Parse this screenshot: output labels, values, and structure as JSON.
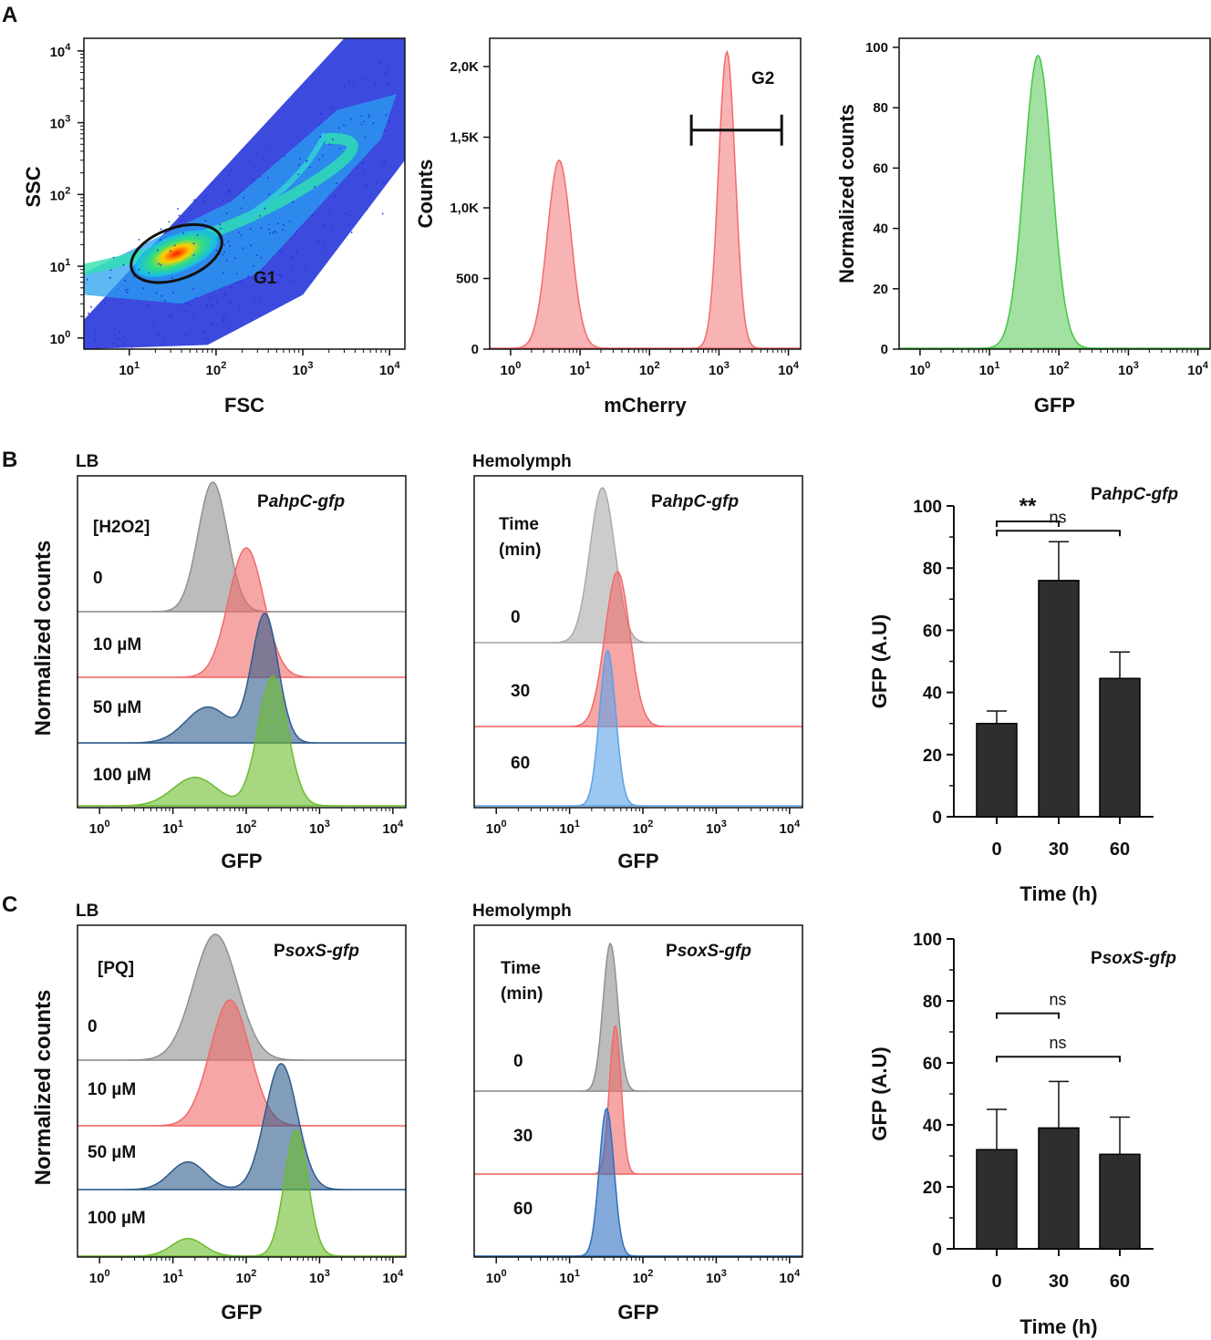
{
  "figure": {
    "panel_labels": [
      "A",
      "B",
      "C"
    ],
    "tick_exponents": [
      "0",
      "1",
      "2",
      "3",
      "4"
    ],
    "tick_base": "10",
    "colors": {
      "grey": "#8f8f8f",
      "red": "#f26a6a",
      "blue": "#2f5b8c",
      "lightblue": "#5aa2e8",
      "green": "#6cbc2d",
      "gfp_green": "#46c446",
      "bar": "#2e2e2e",
      "axis": "#111111"
    }
  },
  "chart_data": [
    {
      "id": "A1",
      "type": "scatter",
      "description_gate": "G1",
      "xlabel": "FSC",
      "ylabel": "SSC",
      "xscale": "log",
      "yscale": "log",
      "xlim": [
        3,
        15000
      ],
      "ylim": [
        0.7,
        15000
      ],
      "x_ticks": [
        "10^1",
        "10^2",
        "10^3",
        "10^4"
      ],
      "y_ticks": [
        "10^0",
        "10^1",
        "10^2",
        "10^3",
        "10^4"
      ],
      "gate": {
        "label": "G1",
        "center_x": 35,
        "center_y": 15,
        "shape": "ellipse"
      }
    },
    {
      "id": "A2",
      "type": "area",
      "xlabel": "mCherry",
      "ylabel": "Counts",
      "xscale": "log",
      "xlim": [
        0.5,
        15000
      ],
      "ylim": [
        0,
        2200
      ],
      "y_ticks": [
        "0",
        "500",
        "1,0K",
        "1,5K",
        "2,0K"
      ],
      "y_tick_values": [
        0,
        500,
        1000,
        1500,
        2000
      ],
      "gate": {
        "label": "G2",
        "from": 400,
        "to": 8000,
        "level": 1550
      },
      "peaks": [
        {
          "center": 5,
          "height": 1330,
          "width": 0.17
        },
        {
          "center": 1300,
          "height": 2100,
          "width": 0.12
        }
      ],
      "color": "#f26a6a"
    },
    {
      "id": "A3",
      "type": "area",
      "xlabel": "GFP",
      "ylabel": "Normalized counts",
      "xscale": "log",
      "xlim": [
        0.5,
        15000
      ],
      "ylim": [
        0,
        103
      ],
      "y_ticks": [
        "0",
        "20",
        "40",
        "60",
        "80",
        "100"
      ],
      "y_tick_values": [
        0,
        20,
        40,
        60,
        80,
        100
      ],
      "peaks": [
        {
          "center": 50,
          "height": 97,
          "width": 0.2
        }
      ],
      "color": "#46c446"
    },
    {
      "id": "B1",
      "type": "area",
      "title": "LB",
      "condition_header": "[H2O2]",
      "reporter_prefix": "P",
      "reporter_gene": "ahpC-gfp",
      "xlabel": "GFP",
      "ylabel": "Normalized counts",
      "xscale": "log",
      "xlim": [
        0.5,
        15000
      ],
      "series": [
        {
          "name": "0",
          "color": "#8f8f8f",
          "peaks": [
            {
              "center": 35,
              "height": 1,
              "width": 0.2
            }
          ]
        },
        {
          "name": "10 µM",
          "color": "#f26a6a",
          "peaks": [
            {
              "center": 100,
              "height": 1,
              "width": 0.24
            }
          ]
        },
        {
          "name": "50 µM",
          "color": "#2f5b8c",
          "peaks": [
            {
              "center": 180,
              "height": 1,
              "width": 0.18
            },
            {
              "center": 30,
              "height": 0.28,
              "width": 0.3
            }
          ]
        },
        {
          "name": "100 µM",
          "color": "#6cbc2d",
          "peaks": [
            {
              "center": 230,
              "height": 1,
              "width": 0.2
            },
            {
              "center": 20,
              "height": 0.22,
              "width": 0.3
            }
          ]
        }
      ]
    },
    {
      "id": "B2",
      "type": "area",
      "title": "Hemolymph",
      "condition_header": "Time (min)",
      "reporter_prefix": "P",
      "reporter_gene": "ahpC-gfp",
      "xlabel": "GFP",
      "xscale": "log",
      "xlim": [
        0.5,
        15000
      ],
      "series": [
        {
          "name": "0",
          "color": "#aaaaaa",
          "peaks": [
            {
              "center": 28,
              "height": 1,
              "width": 0.17
            }
          ]
        },
        {
          "name": "30",
          "color": "#f26a6a",
          "peaks": [
            {
              "center": 45,
              "height": 1,
              "width": 0.17
            }
          ]
        },
        {
          "name": "60",
          "color": "#5aa2e8",
          "peaks": [
            {
              "center": 33,
              "height": 1,
              "width": 0.11
            }
          ]
        }
      ]
    },
    {
      "id": "B3",
      "type": "bar",
      "reporter_prefix": "P",
      "reporter_gene": "ahpC-gfp",
      "categories": [
        "0",
        "30",
        "60"
      ],
      "values": [
        30,
        76,
        44.5
      ],
      "errors": [
        4,
        12.5,
        8.5
      ],
      "xlabel": "Time (h)",
      "ylabel": "GFP (A.U)",
      "ylim": [
        0,
        100
      ],
      "y_ticks": [
        "0",
        "20",
        "40",
        "60",
        "80",
        "100"
      ],
      "y_tick_values": [
        0,
        20,
        40,
        60,
        80,
        100
      ],
      "significance": [
        {
          "from": 0,
          "to": 1,
          "label": "**",
          "level": 95
        },
        {
          "from": 0,
          "to": 2,
          "label": "ns",
          "level": 92
        }
      ]
    },
    {
      "id": "C1",
      "type": "area",
      "title": "LB",
      "condition_header": "[PQ]",
      "reporter_prefix": "P",
      "reporter_gene": "soxS-gfp",
      "xlabel": "GFP",
      "ylabel": "Normalized counts",
      "xscale": "log",
      "xlim": [
        0.5,
        15000
      ],
      "series": [
        {
          "name": "0",
          "color": "#8f8f8f",
          "peaks": [
            {
              "center": 38,
              "height": 1,
              "width": 0.3
            }
          ]
        },
        {
          "name": "10 µM",
          "color": "#f26a6a",
          "peaks": [
            {
              "center": 60,
              "height": 1,
              "width": 0.27
            }
          ]
        },
        {
          "name": "50 µM",
          "color": "#2f5b8c",
          "peaks": [
            {
              "center": 300,
              "height": 1,
              "width": 0.22
            },
            {
              "center": 16,
              "height": 0.22,
              "width": 0.24
            }
          ]
        },
        {
          "name": "100 µM",
          "color": "#6cbc2d",
          "peaks": [
            {
              "center": 480,
              "height": 1,
              "width": 0.16
            },
            {
              "center": 16,
              "height": 0.14,
              "width": 0.22
            }
          ]
        }
      ]
    },
    {
      "id": "C2",
      "type": "area",
      "title": "Hemolymph",
      "condition_header": "Time (min)",
      "reporter_prefix": "P",
      "reporter_gene": "soxS-gfp",
      "xlabel": "GFP",
      "xscale": "log",
      "xlim": [
        0.5,
        15000
      ],
      "series": [
        {
          "name": "0",
          "color": "#8f8f8f",
          "peaks": [
            {
              "center": 36,
              "height": 1,
              "width": 0.1
            }
          ]
        },
        {
          "name": "30",
          "color": "#f26a6a",
          "peaks": [
            {
              "center": 42,
              "height": 1,
              "width": 0.08
            }
          ]
        },
        {
          "name": "60",
          "color": "#2f6fbf",
          "peaks": [
            {
              "center": 32,
              "height": 1,
              "width": 0.1
            }
          ]
        }
      ]
    },
    {
      "id": "C3",
      "type": "bar",
      "reporter_prefix": "P",
      "reporter_gene": "soxS-gfp",
      "categories": [
        "0",
        "30",
        "60"
      ],
      "values": [
        32,
        39,
        30.5
      ],
      "errors": [
        13,
        15,
        12
      ],
      "xlabel": "Time (h)",
      "ylabel": "GFP (A.U)",
      "ylim": [
        0,
        100
      ],
      "y_ticks": [
        "0",
        "20",
        "40",
        "60",
        "80",
        "100"
      ],
      "y_tick_values": [
        0,
        20,
        40,
        60,
        80,
        100
      ],
      "significance": [
        {
          "from": 0,
          "to": 1,
          "label": "ns",
          "level": 76
        },
        {
          "from": 0,
          "to": 2,
          "label": "ns",
          "level": 62
        }
      ]
    }
  ]
}
